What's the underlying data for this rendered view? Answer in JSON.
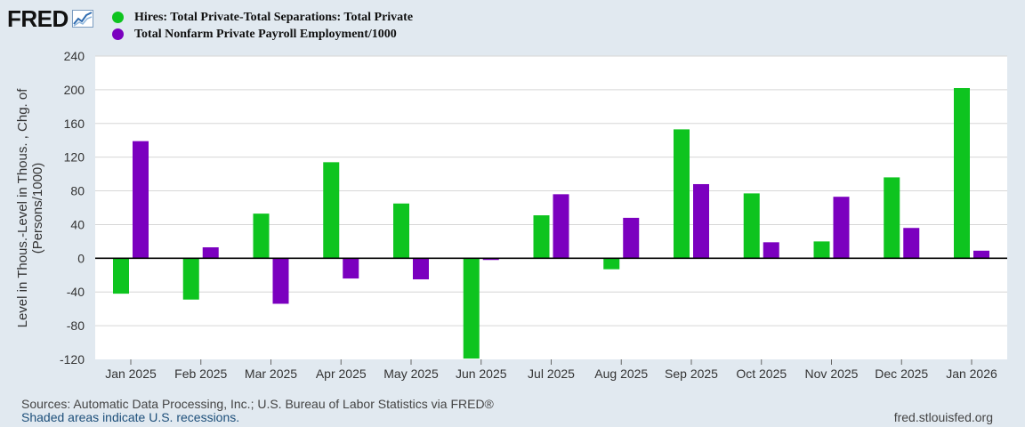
{
  "logo": {
    "text": "FRED",
    "icon": "trend-line-icon"
  },
  "colors": {
    "series1": "#0ec41f",
    "series2": "#7b00bf",
    "plot_bg": "#ffffff",
    "page_bg": "#e1e9f0",
    "grid": "#d6d6d6"
  },
  "legend": [
    {
      "label": "Hires: Total Private-Total Separations: Total Private",
      "color": "#0ec41f"
    },
    {
      "label": "Total Nonfarm Private Payroll Employment/1000",
      "color": "#7b00bf"
    }
  ],
  "footer": {
    "sources": "Sources: Automatic Data Processing, Inc.; U.S. Bureau of Labor Statistics via FRED®",
    "shaded": "Shaded areas indicate U.S. recessions.",
    "url": "fred.stlouisfed.org"
  },
  "chart_data": {
    "type": "bar",
    "title": "",
    "xlabel": "",
    "ylabel": "Level in Thous.-Level in Thous. , Chg. of (Persons/1000)",
    "ylabel_lines": [
      "Level in Thous.-Level in Thous. , Chg. of",
      "(Persons/1000)"
    ],
    "ylim": [
      -120,
      240
    ],
    "yticks": [
      -120,
      -80,
      -40,
      0,
      40,
      80,
      120,
      160,
      200,
      240
    ],
    "categories": [
      "Jan 2025",
      "Feb 2025",
      "Mar 2025",
      "Apr 2025",
      "May 2025",
      "Jun 2025",
      "Jul 2025",
      "Aug 2025",
      "Sep 2025",
      "Oct 2025",
      "Nov 2025",
      "Dec 2025",
      "Jan 2026"
    ],
    "series": [
      {
        "name": "Hires: Total Private-Total Separations: Total Private",
        "color": "#0ec41f",
        "values": [
          -42,
          -49,
          53,
          114,
          65,
          -119,
          51,
          -13,
          153,
          77,
          20,
          96,
          202
        ]
      },
      {
        "name": "Total Nonfarm Private Payroll Employment/1000",
        "color": "#7b00bf",
        "values": [
          139,
          13,
          -54,
          -24,
          -25,
          -2,
          76,
          48,
          88,
          19,
          73,
          36,
          9
        ]
      }
    ]
  }
}
